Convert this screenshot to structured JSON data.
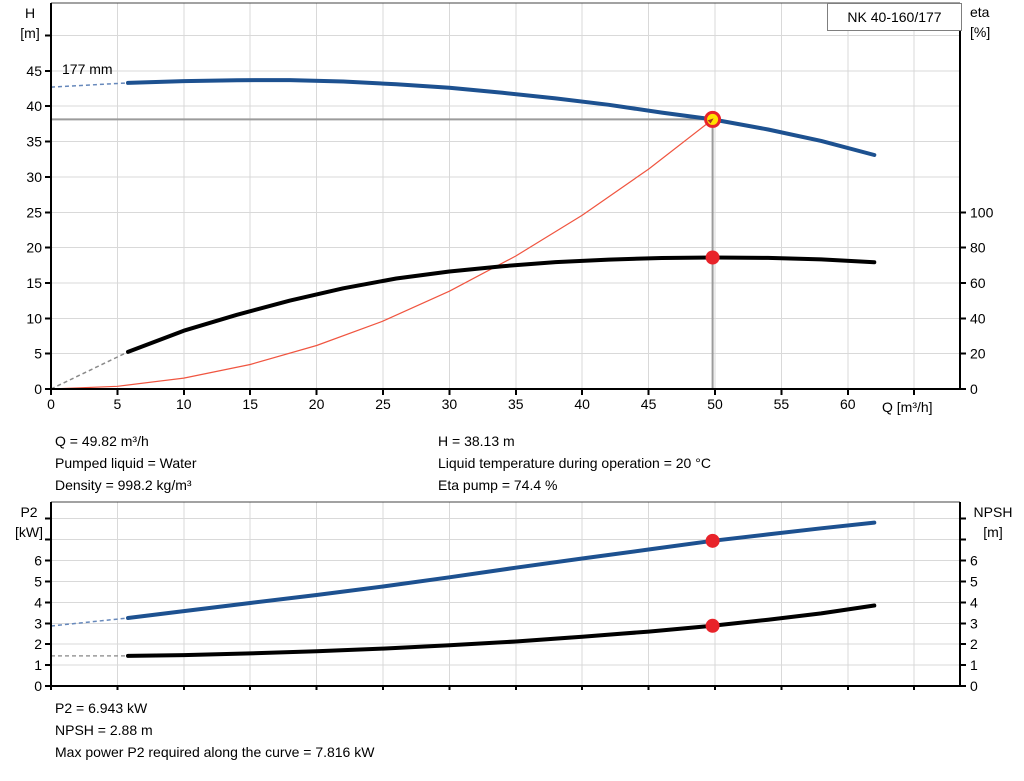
{
  "colors": {
    "curve_blue": "#1d5190",
    "dash_blue": "#6688bb",
    "curve_black": "#000000",
    "dash_gray": "#8a8a8a",
    "system_red": "#f05540",
    "dot_red": "#e8232a",
    "marker_yellow": "#ffe100",
    "crosshair_gray": "#9b9b9b",
    "grid": "#d9d9d9",
    "axis": "#000000"
  },
  "annotations": {
    "duty_left": [
      "Q = 49.82 m³/h",
      "Pumped liquid = Water",
      "Density = 998.2 kg/m³"
    ],
    "duty_right": [
      "H = 38.13 m",
      "Liquid temperature during operation = 20 °C",
      "Eta pump = 74.4 %"
    ],
    "power": [
      "P2 = 6.943 kW",
      "NPSH = 2.88 m",
      "Max power P2 required along the curve = 7.816 kW"
    ]
  },
  "chart_data": [
    {
      "type": "line",
      "id": "head-efficiency-chart",
      "title": "NK 40-160/177",
      "impeller_label": "177 mm",
      "xlabel": "Q [m³/h]",
      "ylabel_left": "H [m]",
      "ylabel_left_lines": [
        "H",
        "[m]"
      ],
      "ylabel_right": "eta [%]",
      "ylabel_right_lines": [
        "eta",
        "[%]"
      ],
      "xlim": [
        0,
        68.45
      ],
      "ylim_left": [
        0,
        54.6
      ],
      "ylim_right": [
        0,
        218.4
      ],
      "x_ticks": [
        0,
        5,
        10,
        15,
        20,
        25,
        30,
        35,
        40,
        45,
        50,
        55,
        60
      ],
      "x_ticks_unlabeled": [
        65
      ],
      "y_ticks_left": [
        0,
        5,
        10,
        15,
        20,
        25,
        30,
        35,
        40,
        45
      ],
      "y_ticks_left_unlabeled": [
        50
      ],
      "y_ticks_right": [
        0,
        20,
        40,
        60,
        80,
        100
      ],
      "y_ticks_right_unlabeled": [],
      "grid": {
        "x_step": 5,
        "y_step_left": 5
      },
      "series": [
        {
          "name": "system-curve",
          "axis": "left",
          "color": "#f05540",
          "width": 1.2,
          "points": [
            [
              0,
              0
            ],
            [
              5,
              0.38
            ],
            [
              10,
              1.54
            ],
            [
              15,
              3.46
            ],
            [
              20,
              6.15
            ],
            [
              25,
              9.61
            ],
            [
              30,
              13.83
            ],
            [
              35,
              18.82
            ],
            [
              40,
              24.58
            ],
            [
              45,
              31.11
            ],
            [
              49.82,
              38.13
            ]
          ]
        },
        {
          "name": "efficiency-curve",
          "axis": "right",
          "color": "#000000",
          "width": 4,
          "dash_color": "#8a8a8a",
          "dash_points": [
            [
              0,
              0
            ],
            [
              5.8,
              21
            ]
          ],
          "points": [
            [
              5.8,
              21
            ],
            [
              10,
              33
            ],
            [
              14,
              42
            ],
            [
              18,
              50
            ],
            [
              22,
              57
            ],
            [
              26,
              62.5
            ],
            [
              30,
              66.5
            ],
            [
              34,
              69.5
            ],
            [
              38,
              71.8
            ],
            [
              42,
              73.2
            ],
            [
              46,
              74.1
            ],
            [
              49.82,
              74.4
            ],
            [
              54,
              74.2
            ],
            [
              58,
              73.3
            ],
            [
              62,
              71.7
            ]
          ]
        },
        {
          "name": "head-curve",
          "axis": "left",
          "color": "#1d5190",
          "width": 4,
          "dash_color": "#6688bb",
          "dash_points": [
            [
              0,
              42.7
            ],
            [
              5.8,
              43.3
            ]
          ],
          "points": [
            [
              5.8,
              43.3
            ],
            [
              10,
              43.55
            ],
            [
              14,
              43.68
            ],
            [
              18,
              43.7
            ],
            [
              22,
              43.5
            ],
            [
              26,
              43.1
            ],
            [
              30,
              42.6
            ],
            [
              34,
              41.9
            ],
            [
              38,
              41.1
            ],
            [
              42,
              40.2
            ],
            [
              46,
              39.1
            ],
            [
              49.82,
              38.13
            ],
            [
              54,
              36.7
            ],
            [
              58,
              35.1
            ],
            [
              62,
              33.1
            ]
          ]
        }
      ],
      "crosshair": {
        "x": 49.82,
        "y": 38.13,
        "color": "#9b9b9b"
      },
      "markers": [
        {
          "name": "efficiency-duty-dot",
          "x": 49.82,
          "y": 74.4,
          "axis": "right",
          "r": 7,
          "fill": "#e8232a"
        },
        {
          "name": "duty-point-marker",
          "x": 49.82,
          "y": 38.13,
          "axis": "left",
          "r": 7,
          "fill": "#ffe100",
          "stroke": "#e8232a",
          "sw": 3,
          "arrow": true
        }
      ],
      "duty_point": {
        "Q": 49.82,
        "H": 38.13,
        "eta": 74.4
      }
    },
    {
      "type": "line",
      "id": "power-npsh-chart",
      "xlabel": "",
      "ylabel_left": "P2 [kW]",
      "ylabel_left_lines": [
        "P2",
        "[kW]"
      ],
      "ylabel_right": "NPSH [m]",
      "ylabel_right_lines": [
        "NPSH",
        "[m]"
      ],
      "xlim": [
        0,
        68.45
      ],
      "ylim_left": [
        0,
        8.8
      ],
      "ylim_right": [
        0,
        8.8
      ],
      "x_ticks": [],
      "x_ticks_unlabeled": [
        0,
        5,
        10,
        15,
        20,
        25,
        30,
        35,
        40,
        45,
        50,
        55,
        60,
        65
      ],
      "y_ticks_left": [
        0,
        1,
        2,
        3,
        4,
        5,
        6
      ],
      "y_ticks_left_unlabeled": [
        7,
        8
      ],
      "y_ticks_right": [
        0,
        1,
        2,
        3,
        4,
        5,
        6
      ],
      "y_ticks_right_unlabeled": [
        7,
        8
      ],
      "grid": {
        "x_step": 5,
        "y_step_left": 1
      },
      "series": [
        {
          "name": "npsh-curve",
          "axis": "right",
          "color": "#000000",
          "width": 4,
          "dash_color": "#9a9a9a",
          "dash_points": [
            [
              0,
              1.44
            ],
            [
              5.8,
              1.44
            ]
          ],
          "points": [
            [
              5.8,
              1.44
            ],
            [
              10,
              1.48
            ],
            [
              15,
              1.56
            ],
            [
              20,
              1.66
            ],
            [
              25,
              1.79
            ],
            [
              30,
              1.95
            ],
            [
              35,
              2.13
            ],
            [
              40,
              2.36
            ],
            [
              45,
              2.6
            ],
            [
              49.82,
              2.88
            ],
            [
              54,
              3.17
            ],
            [
              58,
              3.47
            ],
            [
              62,
              3.85
            ]
          ]
        },
        {
          "name": "p2-curve",
          "axis": "left",
          "color": "#1d5190",
          "width": 4,
          "dash_color": "#6688bb",
          "dash_points": [
            [
              0,
              2.87
            ],
            [
              5.8,
              3.25
            ]
          ],
          "points": [
            [
              5.8,
              3.25
            ],
            [
              10,
              3.58
            ],
            [
              15,
              3.97
            ],
            [
              20,
              4.35
            ],
            [
              25,
              4.76
            ],
            [
              30,
              5.2
            ],
            [
              35,
              5.66
            ],
            [
              40,
              6.1
            ],
            [
              45,
              6.53
            ],
            [
              49.82,
              6.943
            ],
            [
              54,
              7.25
            ],
            [
              58,
              7.54
            ],
            [
              62,
              7.816
            ]
          ]
        }
      ],
      "markers": [
        {
          "name": "p2-duty-dot",
          "x": 49.82,
          "y": 6.943,
          "axis": "left",
          "r": 7,
          "fill": "#e8232a"
        },
        {
          "name": "npsh-duty-dot",
          "x": 49.82,
          "y": 2.88,
          "axis": "right",
          "r": 7,
          "fill": "#e8232a"
        }
      ],
      "duty_point": {
        "P2": 6.943,
        "NPSH": 2.88
      }
    }
  ]
}
